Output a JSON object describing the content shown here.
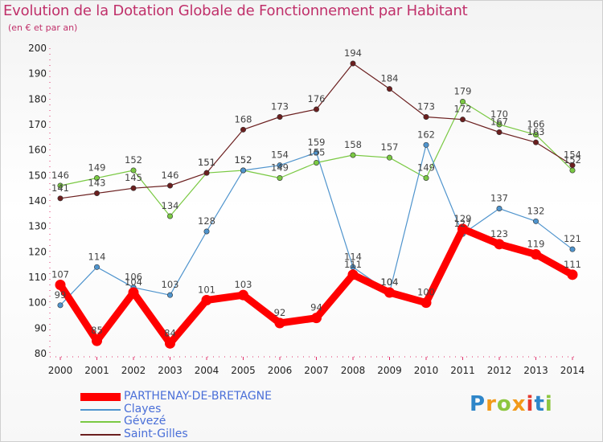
{
  "title": "Evolution de la Dotation Globale de Fonctionnement par Habitant",
  "subtitle": "(en € et par an)",
  "logo": "Proxiti",
  "chart_data": {
    "type": "line",
    "title": "Evolution de la Dotation Globale de Fonctionnement par Habitant",
    "subtitle": "(en € et par an)",
    "x": [
      "2000",
      "2001",
      "2002",
      "2003",
      "2004",
      "2005",
      "2006",
      "2007",
      "2008",
      "2009",
      "2010",
      "2011",
      "2012",
      "2013",
      "2014"
    ],
    "ylim": [
      80,
      200
    ],
    "yticks": [
      80,
      90,
      100,
      110,
      120,
      130,
      140,
      150,
      160,
      170,
      180,
      190,
      200
    ],
    "grid": false,
    "legend_position": "bottom-left",
    "series": [
      {
        "name": "PARTHENAY-DE-BRETAGNE",
        "color": "#ff0000",
        "values": [
          107,
          85,
          104,
          84,
          101,
          103,
          92,
          94,
          111,
          104,
          100,
          129,
          123,
          119,
          111
        ]
      },
      {
        "name": "Clayes",
        "color": "#4f94cd",
        "values": [
          99,
          114,
          106,
          103,
          128,
          152,
          154,
          159,
          114,
          104,
          162,
          127,
          137,
          132,
          121
        ]
      },
      {
        "name": "Gévezé",
        "color": "#7ac943",
        "values": [
          146,
          149,
          152,
          134,
          151,
          152,
          149,
          155,
          158,
          157,
          149,
          179,
          170,
          166,
          152
        ]
      },
      {
        "name": "Saint-Gilles",
        "color": "#6b1f1f",
        "values": [
          141,
          143,
          145,
          146,
          151,
          168,
          173,
          176,
          194,
          184,
          173,
          172,
          167,
          163,
          154
        ]
      }
    ]
  }
}
